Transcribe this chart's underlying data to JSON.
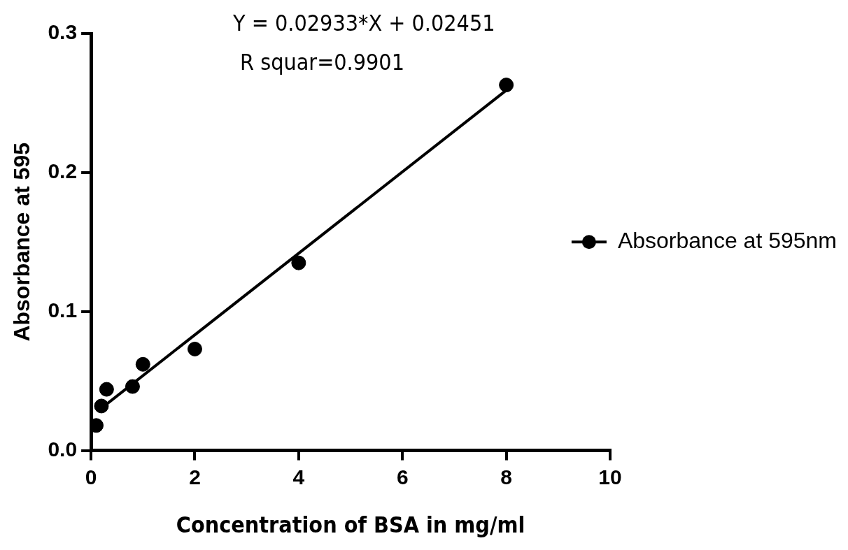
{
  "chart_data": {
    "type": "scatter",
    "xlabel": "Concentration of BSA in mg/ml",
    "ylabel": "Absorbance at 595",
    "annotations": [
      "Y = 0.02933*X + 0.02451",
      "R squar=0.9901"
    ],
    "series": [
      {
        "name": "Absorbance at 595nm",
        "color": "#000000",
        "marker": "circle",
        "x": [
          0.1,
          0.2,
          0.3,
          0.8,
          1,
          2,
          4,
          8
        ],
        "values": [
          0.018,
          0.032,
          0.044,
          0.046,
          0.062,
          0.073,
          0.135,
          0.263
        ]
      },
      {
        "type": "line",
        "color": "#000000",
        "marker": "none",
        "x": [
          0.2,
          8
        ],
        "values": [
          0.0304,
          0.2592
        ]
      }
    ],
    "xlim": [
      0,
      10
    ],
    "xticks": [
      0,
      2,
      4,
      6,
      8,
      10
    ],
    "ylim": [
      0,
      0.3
    ],
    "yticks": [
      {
        "value": 0,
        "label": "0.0"
      },
      {
        "value": 0.1,
        "label": "0.1"
      },
      {
        "value": 0.2,
        "label": "0.2"
      },
      {
        "value": 0.3,
        "label": "0.3"
      }
    ],
    "grid": false,
    "legend": "right"
  }
}
